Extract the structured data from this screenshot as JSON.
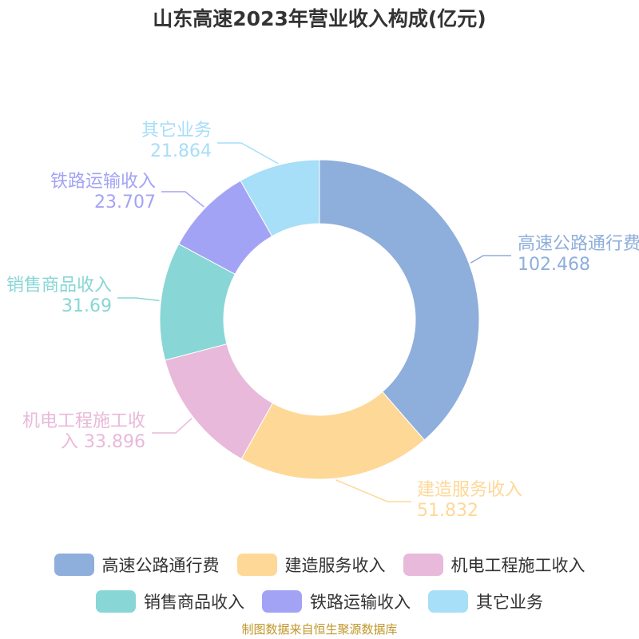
{
  "title": "山东高速2023年营业收入构成(亿元)",
  "source": "制图数据来自恒生聚源数据库",
  "chart_data": {
    "type": "pie",
    "title": "山东高速2023年营业收入构成(亿元)",
    "donut": true,
    "legend_position": "bottom",
    "categories": [
      "高速公路通行费",
      "建造服务收入",
      "机电工程施工收入",
      "销售商品收入",
      "铁路运输收入",
      "其它业务"
    ],
    "values": [
      102.468,
      51.832,
      33.896,
      31.69,
      23.707,
      21.864
    ],
    "value_labels": [
      "102.468",
      "51.832",
      "33.896",
      "31.69",
      "23.707",
      "21.864"
    ],
    "colors": [
      "#8eaedb",
      "#fed897",
      "#e8b9da",
      "#88d6d6",
      "#a3a3f6",
      "#a7def8"
    ]
  },
  "legend_rows": [
    [
      {
        "label": "高速公路通行费",
        "color": "#8eaedb"
      },
      {
        "label": "建造服务收入",
        "color": "#fed897"
      },
      {
        "label": "机电工程施工收入",
        "color": "#e8b9da"
      }
    ],
    [
      {
        "label": "销售商品收入",
        "color": "#88d6d6"
      },
      {
        "label": "铁路运输收入",
        "color": "#a3a3f6"
      },
      {
        "label": "其它业务",
        "color": "#a7def8"
      }
    ]
  ]
}
